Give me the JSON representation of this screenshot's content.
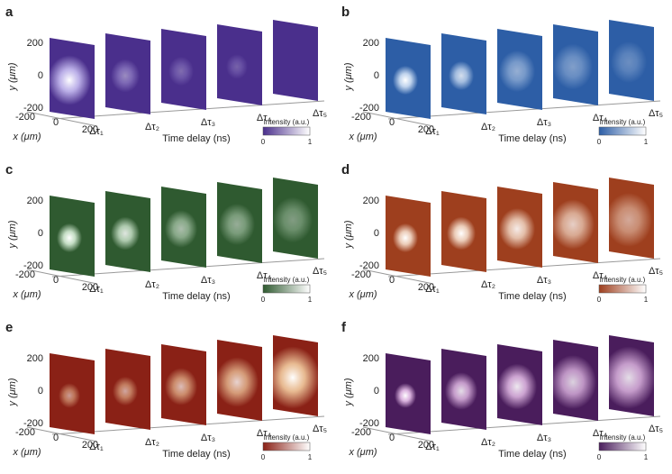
{
  "panels": [
    {
      "letter": "a",
      "y_axis_label": "y (μm)",
      "y_ticks": [
        "200",
        "0",
        "-200"
      ],
      "x_ticks": [
        "-200",
        "0",
        "200"
      ],
      "x_axis_label": "x (μm)",
      "time_labels": [
        "Δτ₁",
        "Δτ₂",
        "Δτ₃",
        "Δτ₄",
        "Δτ₅"
      ],
      "time_axis_label": "Time delay (ns)",
      "colorbar_label": "Intensity (a.u.)",
      "colorbar_ticks": [
        "0",
        "1"
      ]
    },
    {
      "letter": "b",
      "y_axis_label": "y (μm)",
      "y_ticks": [
        "200",
        "0",
        "-200"
      ],
      "x_ticks": [
        "-200",
        "0",
        "200"
      ],
      "x_axis_label": "x (μm)",
      "time_labels": [
        "Δτ₁",
        "Δτ₂",
        "Δτ₃",
        "Δτ₄",
        "Δτ₅"
      ],
      "time_axis_label": "Time delay (ns)",
      "colorbar_label": "Intensity (a.u.)",
      "colorbar_ticks": [
        "0",
        "1"
      ]
    },
    {
      "letter": "c",
      "y_axis_label": "y (μm)",
      "y_ticks": [
        "200",
        "0",
        "-200"
      ],
      "x_ticks": [
        "-200",
        "0",
        "200"
      ],
      "x_axis_label": "x (μm)",
      "time_labels": [
        "Δτ₁",
        "Δτ₂",
        "Δτ₃",
        "Δτ₄",
        "Δτ₅"
      ],
      "time_axis_label": "Time delay (ns)",
      "colorbar_label": "Intensity (a.u.)",
      "colorbar_ticks": [
        "0",
        "1"
      ]
    },
    {
      "letter": "d",
      "y_axis_label": "y (μm)",
      "y_ticks": [
        "200",
        "0",
        "-200"
      ],
      "x_ticks": [
        "-200",
        "0",
        "200"
      ],
      "x_axis_label": "x (μm)",
      "time_labels": [
        "Δτ₁",
        "Δτ₂",
        "Δτ₃",
        "Δτ₄",
        "Δτ₅"
      ],
      "time_axis_label": "Time delay (ns)",
      "colorbar_label": "Intensity (a.u.)",
      "colorbar_ticks": [
        "0",
        "1"
      ]
    },
    {
      "letter": "e",
      "y_axis_label": "y (μm)",
      "y_ticks": [
        "200",
        "0",
        "-200"
      ],
      "x_ticks": [
        "-200",
        "0",
        "200"
      ],
      "x_axis_label": "x (μm)",
      "time_labels": [
        "Δτ₁",
        "Δτ₂",
        "Δτ₃",
        "Δτ₄",
        "Δτ₅"
      ],
      "time_axis_label": "Time delay (ns)",
      "colorbar_label": "Intensity (a.u.)",
      "colorbar_ticks": [
        "0",
        "1"
      ]
    },
    {
      "letter": "f",
      "y_axis_label": "y (μm)",
      "y_ticks": [
        "200",
        "0",
        "-200"
      ],
      "x_ticks": [
        "-200",
        "0",
        "200"
      ],
      "x_axis_label": "x (μm)",
      "time_labels": [
        "Δτ₁",
        "Δτ₂",
        "Δτ₃",
        "Δτ₄",
        "Δτ₅"
      ],
      "time_axis_label": "Time delay (ns)",
      "colorbar_label": "Intensity (a.u.)",
      "colorbar_ticks": [
        "0",
        "1"
      ]
    }
  ]
}
